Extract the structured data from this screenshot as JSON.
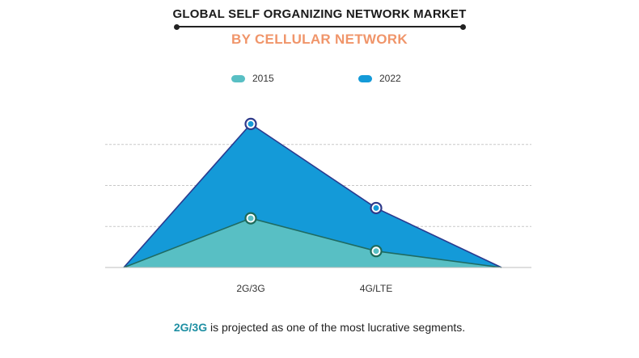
{
  "chart_data": {
    "type": "area",
    "title": "GLOBAL SELF ORGANIZING NETWORK MARKET",
    "subtitle": "BY CELLULAR NETWORK",
    "categories": [
      "",
      "2G/3G",
      "4G/LTE",
      ""
    ],
    "series": [
      {
        "name": "2015",
        "values": [
          0,
          12,
          4,
          0
        ],
        "color": "#58bfc4"
      },
      {
        "name": "2022",
        "values": [
          0,
          35,
          14.5,
          0
        ],
        "color": "#149ad8"
      }
    ],
    "ylim": [
      0,
      40
    ],
    "grid": true,
    "legend": "top-center",
    "marker_colors": {
      "2015": "#1e6a5a",
      "2022": "#2e3a8a"
    }
  },
  "caption": {
    "highlight": "2G/3G",
    "text": " is projected as one of the most lucrative segments."
  }
}
